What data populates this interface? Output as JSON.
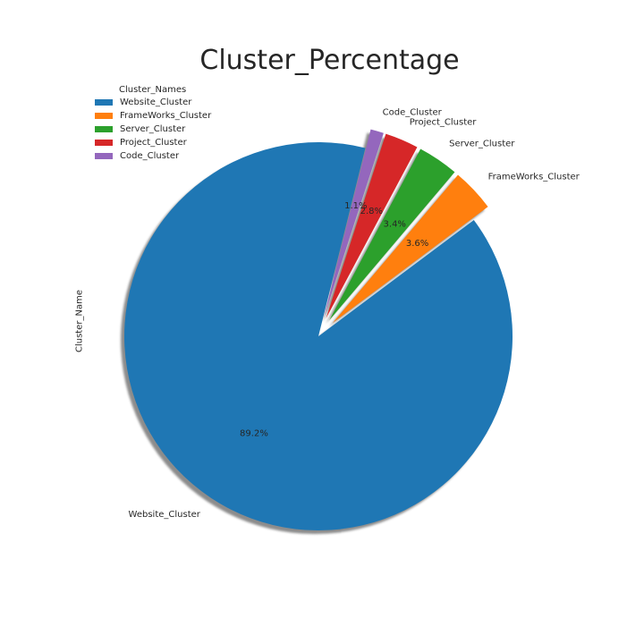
{
  "chart_data": {
    "type": "pie",
    "title": "Cluster_Percentage",
    "ylabel": "Cluster_Name",
    "legend_title": "Cluster_Names",
    "legend_position": "upper-left",
    "shadow": true,
    "start_angle_deg": 76,
    "counter_clockwise": true,
    "slices": [
      {
        "label": "Website_Cluster",
        "value": 89.2,
        "pct_label": "89.2%",
        "color": "#1f77b4",
        "explode": 0.0
      },
      {
        "label": "FrameWorks_Cluster",
        "value": 3.6,
        "pct_label": "3.6%",
        "color": "#ff7f0e",
        "explode": 0.05
      },
      {
        "label": "Server_Cluster",
        "value": 3.4,
        "pct_label": "3.4%",
        "color": "#2ca02c",
        "explode": 0.05
      },
      {
        "label": "Project_Cluster",
        "value": 2.8,
        "pct_label": "2.8%",
        "color": "#d62728",
        "explode": 0.05
      },
      {
        "label": "Code_Cluster",
        "value": 1.1,
        "pct_label": "1.1%",
        "color": "#9467bd",
        "explode": 0.05
      }
    ]
  }
}
